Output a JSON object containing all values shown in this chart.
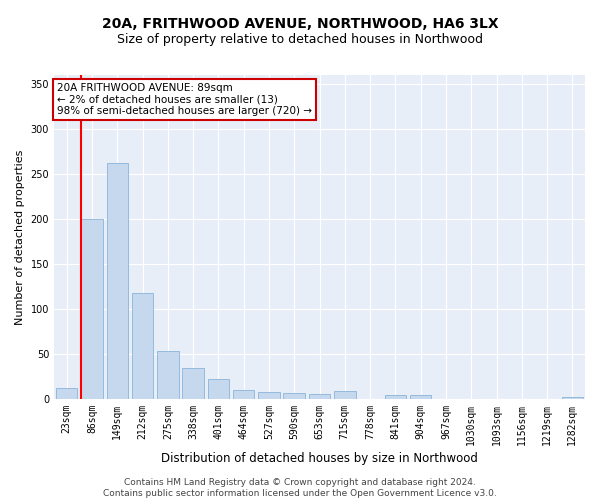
{
  "title": "20A, FRITHWOOD AVENUE, NORTHWOOD, HA6 3LX",
  "subtitle": "Size of property relative to detached houses in Northwood",
  "xlabel": "Distribution of detached houses by size in Northwood",
  "ylabel": "Number of detached properties",
  "categories": [
    "23sqm",
    "86sqm",
    "149sqm",
    "212sqm",
    "275sqm",
    "338sqm",
    "401sqm",
    "464sqm",
    "527sqm",
    "590sqm",
    "653sqm",
    "715sqm",
    "778sqm",
    "841sqm",
    "904sqm",
    "967sqm",
    "1030sqm",
    "1093sqm",
    "1156sqm",
    "1219sqm",
    "1282sqm"
  ],
  "values": [
    12,
    200,
    262,
    118,
    53,
    35,
    22,
    10,
    8,
    7,
    6,
    9,
    0,
    5,
    5,
    0,
    0,
    0,
    0,
    0,
    2
  ],
  "bar_color": "#c5d8ed",
  "bar_edge_color": "#8ab4d8",
  "highlight_color": "#ff0000",
  "annotation_text": "20A FRITHWOOD AVENUE: 89sqm\n← 2% of detached houses are smaller (13)\n98% of semi-detached houses are larger (720) →",
  "annotation_box_color": "#ffffff",
  "annotation_box_edge_color": "#cc0000",
  "vline_x_index": 1,
  "ylim": [
    0,
    360
  ],
  "yticks": [
    0,
    50,
    100,
    150,
    200,
    250,
    300,
    350
  ],
  "background_color": "#e8eef8",
  "grid_color": "#ffffff",
  "footer_text": "Contains HM Land Registry data © Crown copyright and database right 2024.\nContains public sector information licensed under the Open Government Licence v3.0.",
  "title_fontsize": 10,
  "subtitle_fontsize": 9,
  "xlabel_fontsize": 8.5,
  "ylabel_fontsize": 8,
  "tick_fontsize": 7,
  "footer_fontsize": 6.5,
  "annotation_fontsize": 7.5
}
